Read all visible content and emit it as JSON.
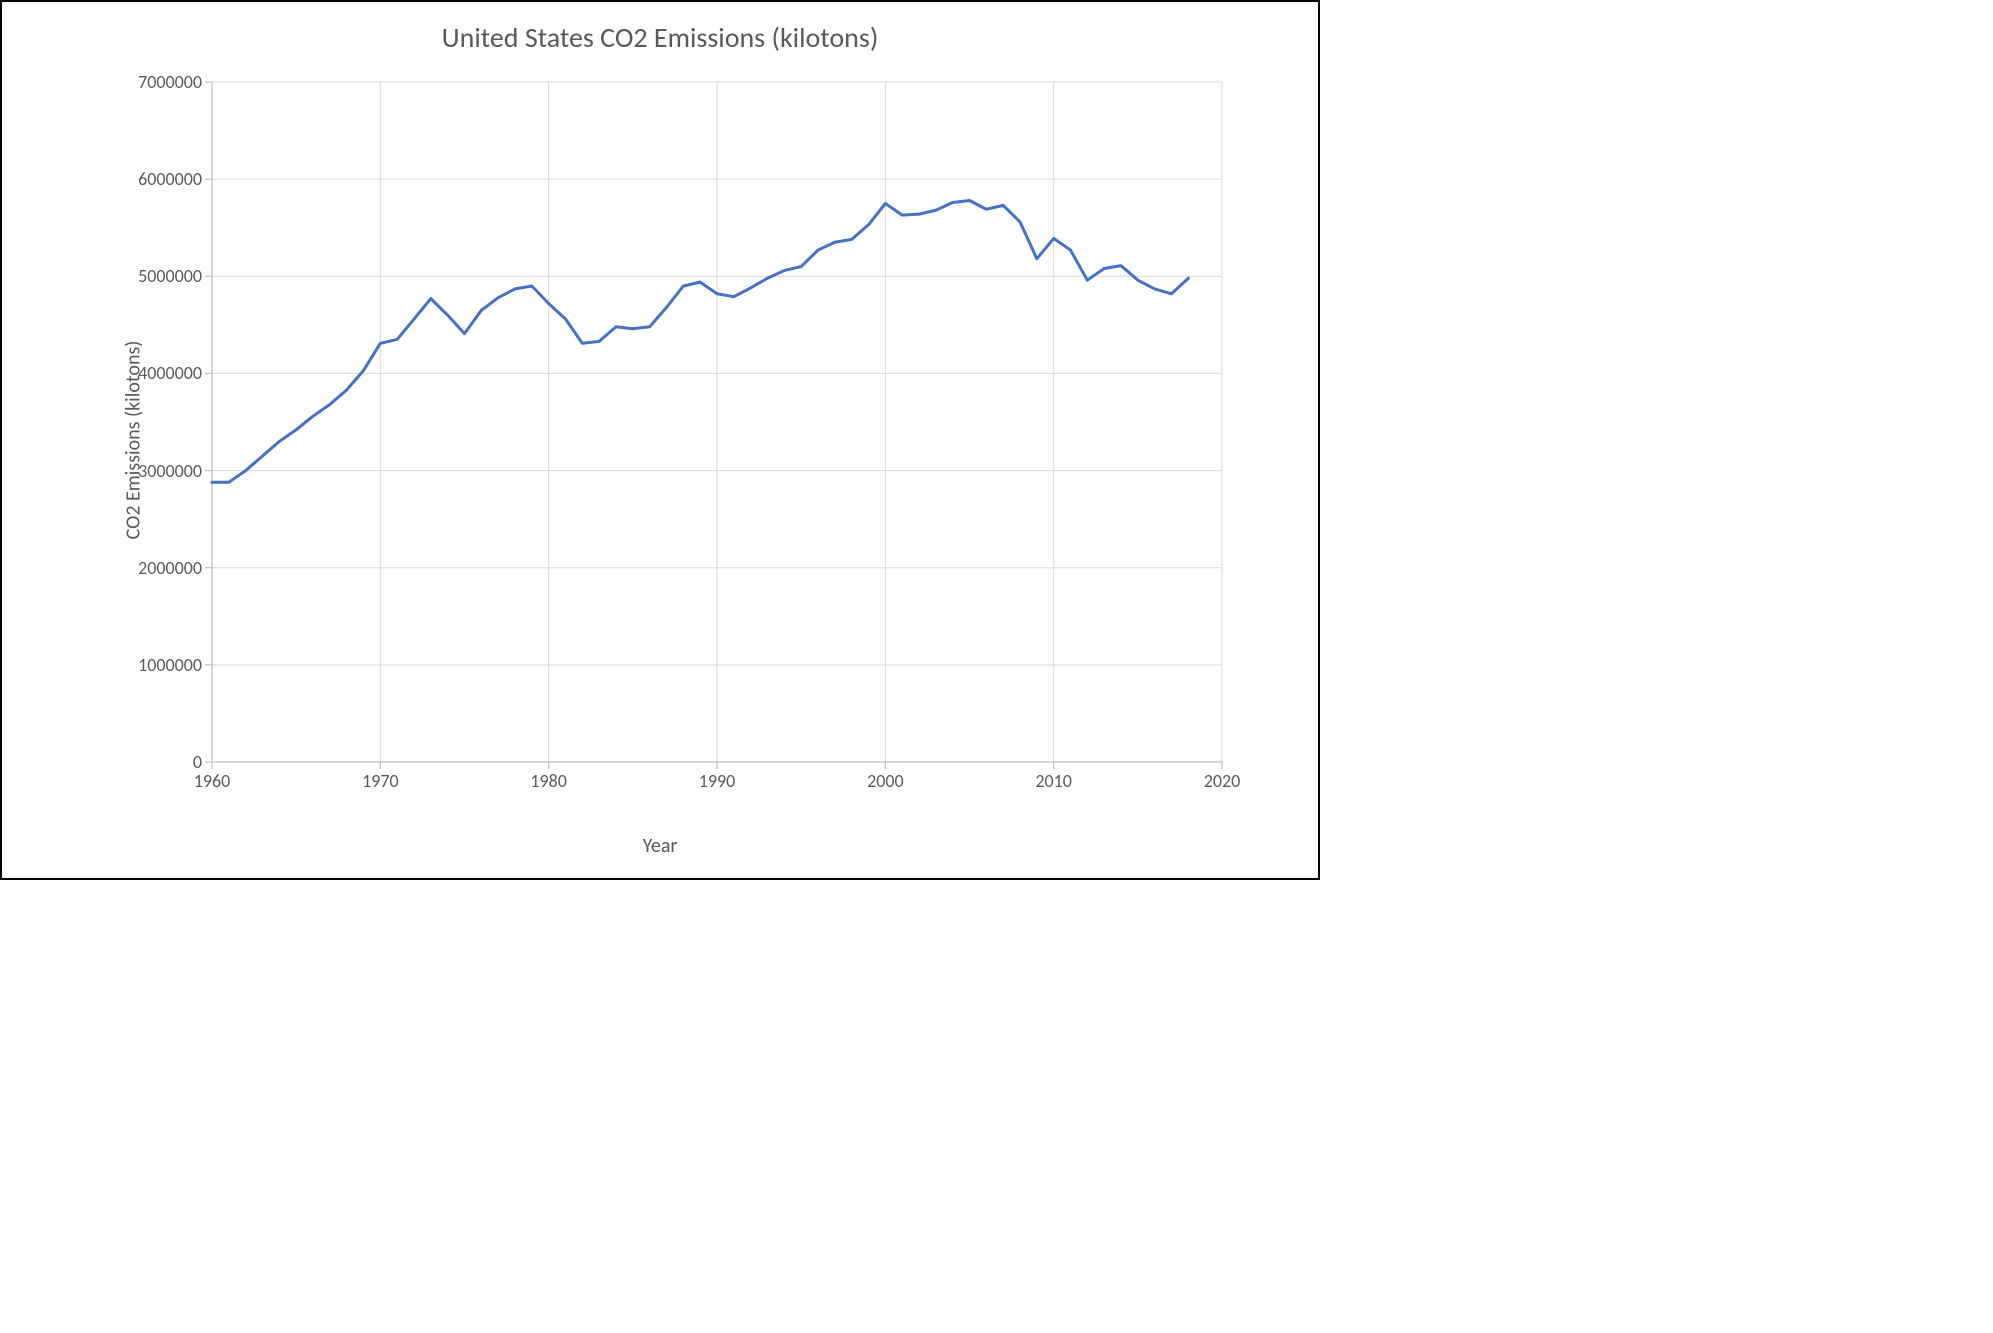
{
  "chart": {
    "type": "line",
    "title": "United States CO2 Emissions (kilotons)",
    "title_fontsize": 28,
    "title_color": "#595959",
    "x_axis_label": "Year",
    "y_axis_label": "CO2 Emissions (kilotons)",
    "axis_label_fontsize": 20,
    "axis_label_color": "#595959",
    "tick_label_fontsize": 18,
    "tick_label_color": "#595959",
    "background_color": "#ffffff",
    "frame_border_color": "#000000",
    "grid_color": "#d9d9d9",
    "axis_line_color": "#bfbfbf",
    "line_color": "#4472c4",
    "line_width": 3,
    "xlim": [
      1960,
      2020
    ],
    "ylim": [
      0,
      7000000
    ],
    "x_ticks": [
      1960,
      1970,
      1980,
      1990,
      2000,
      2010,
      2020
    ],
    "y_ticks": [
      0,
      1000000,
      2000000,
      3000000,
      4000000,
      5000000,
      6000000,
      7000000
    ],
    "years": [
      1960,
      1961,
      1962,
      1963,
      1964,
      1965,
      1966,
      1967,
      1968,
      1969,
      1970,
      1971,
      1972,
      1973,
      1974,
      1975,
      1976,
      1977,
      1978,
      1979,
      1980,
      1981,
      1982,
      1983,
      1984,
      1985,
      1986,
      1987,
      1988,
      1989,
      1990,
      1991,
      1992,
      1993,
      1994,
      1995,
      1996,
      1997,
      1998,
      1999,
      2000,
      2001,
      2002,
      2003,
      2004,
      2005,
      2006,
      2007,
      2008,
      2009,
      2010,
      2011,
      2012,
      2013,
      2014,
      2015,
      2016,
      2017,
      2018
    ],
    "values": [
      2880000,
      2880000,
      3000000,
      3150000,
      3300000,
      3420000,
      3560000,
      3680000,
      3830000,
      4030000,
      4310000,
      4350000,
      4560000,
      4770000,
      4600000,
      4410000,
      4650000,
      4780000,
      4870000,
      4900000,
      4720000,
      4560000,
      4310000,
      4330000,
      4480000,
      4460000,
      4480000,
      4680000,
      4900000,
      4940000,
      4820000,
      4790000,
      4880000,
      4980000,
      5060000,
      5100000,
      5270000,
      5350000,
      5380000,
      5530000,
      5750000,
      5630000,
      5640000,
      5680000,
      5760000,
      5780000,
      5690000,
      5730000,
      5560000,
      5180000,
      5390000,
      5270000,
      4960000,
      5080000,
      5110000,
      4960000,
      4870000,
      4820000,
      4980000
    ]
  }
}
